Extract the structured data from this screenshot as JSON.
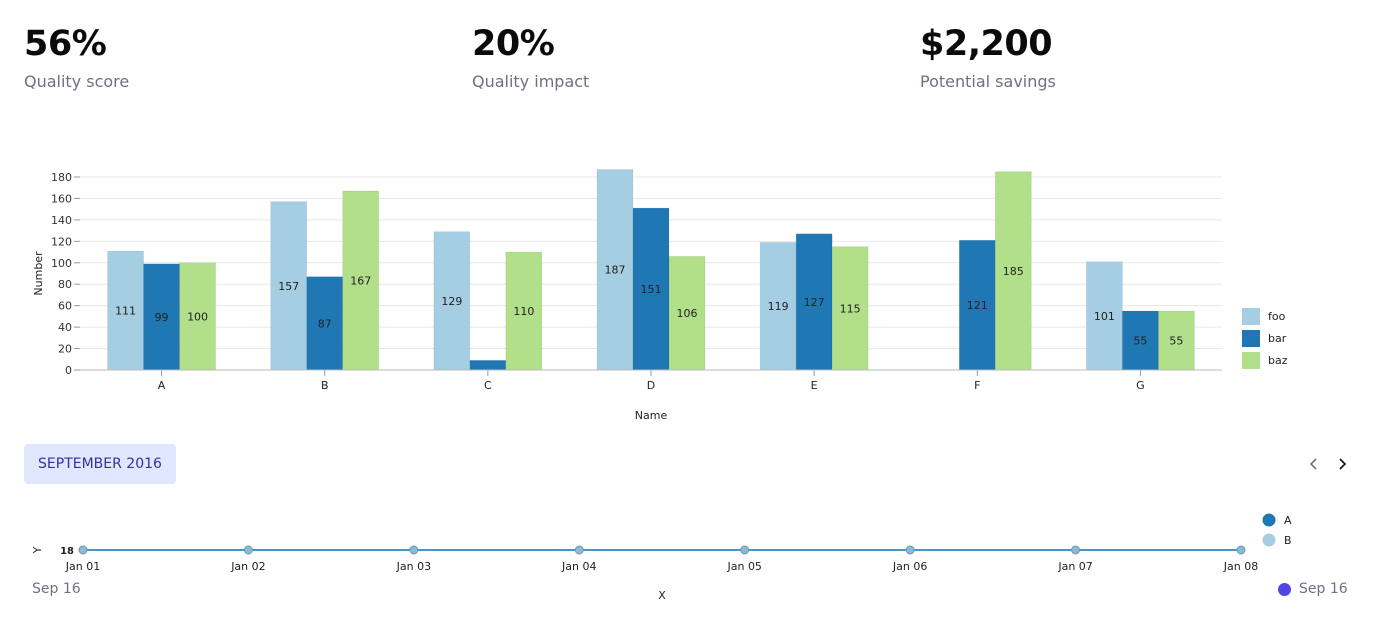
{
  "kpis": [
    {
      "value": "56%",
      "label": "Quality score"
    },
    {
      "value": "20%",
      "label": "Quality impact"
    },
    {
      "value": "$2,200",
      "label": "Potential savings"
    }
  ],
  "chart_data": [
    {
      "type": "bar",
      "categories": [
        "A",
        "B",
        "C",
        "D",
        "E",
        "F",
        "G"
      ],
      "series": [
        {
          "name": "foo",
          "color": "#a6cee3",
          "values": [
            111,
            157,
            129,
            187,
            119,
            null,
            101
          ],
          "labels": [
            "111",
            "157",
            "129",
            "187",
            "119",
            "",
            "101"
          ]
        },
        {
          "name": "bar",
          "color": "#1f78b4",
          "values": [
            99,
            87,
            9,
            151,
            127,
            121,
            55
          ],
          "labels": [
            "99",
            "87",
            "",
            "151",
            "127",
            "121",
            "55"
          ]
        },
        {
          "name": "baz",
          "color": "#b2df8a",
          "values": [
            100,
            167,
            110,
            106,
            115,
            185,
            55
          ],
          "labels": [
            "100",
            "167",
            "110",
            "106",
            "115",
            "185",
            "55"
          ]
        }
      ],
      "xlabel": "Name",
      "ylabel": "Number",
      "ylim": [
        0,
        180
      ],
      "yticks": [
        "0",
        "20",
        "40",
        "60",
        "80",
        "100",
        "120",
        "140",
        "160",
        "180"
      ],
      "grid": true,
      "legend": "right"
    },
    {
      "type": "line",
      "x": [
        "Jan 01",
        "Jan 02",
        "Jan 03",
        "Jan 04",
        "Jan 05",
        "Jan 06",
        "Jan 07",
        "Jan 08"
      ],
      "series": [
        {
          "name": "A",
          "color": "#1f78b4"
        },
        {
          "name": "B",
          "color": "#a6cee3"
        }
      ],
      "xlabel": "X",
      "ylabel": "Y",
      "ytick_label": "18",
      "legend": "top-right"
    }
  ],
  "calendar": {
    "month_label": "SEPTEMBER 2016",
    "range_start": "Sep 16",
    "range_end": "Sep 16",
    "accent": "#4f46e5"
  },
  "icons": {
    "prev": "chevron-left-icon",
    "next": "chevron-right-icon"
  }
}
